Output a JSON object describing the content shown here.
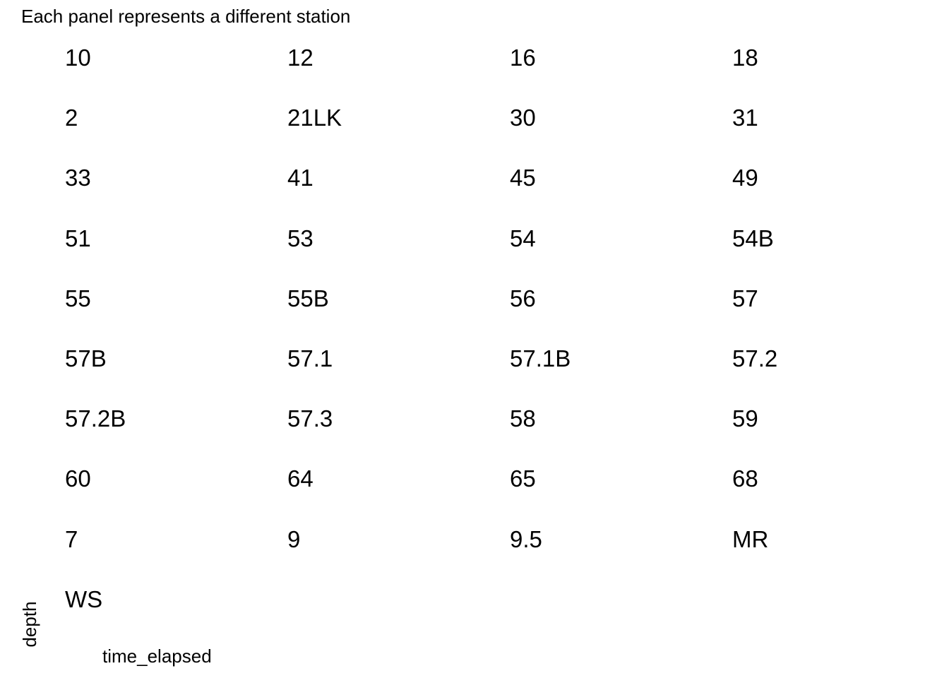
{
  "chart_data": {
    "type": "line",
    "subtitle": "Each panel represents a different station",
    "xlabel": "time_elapsed",
    "ylabel": "depth",
    "facet_ncol": 4,
    "panels": [
      "10",
      "12",
      "16",
      "18",
      "2",
      "21LK",
      "30",
      "31",
      "33",
      "41",
      "45",
      "49",
      "51",
      "53",
      "54",
      "54B",
      "55",
      "55B",
      "56",
      "57",
      "57B",
      "57.1",
      "57.1B",
      "57.2",
      "57.2B",
      "57.3",
      "58",
      "59",
      "60",
      "64",
      "65",
      "68",
      "7",
      "9",
      "9.5",
      "MR",
      "WS"
    ],
    "series": []
  }
}
